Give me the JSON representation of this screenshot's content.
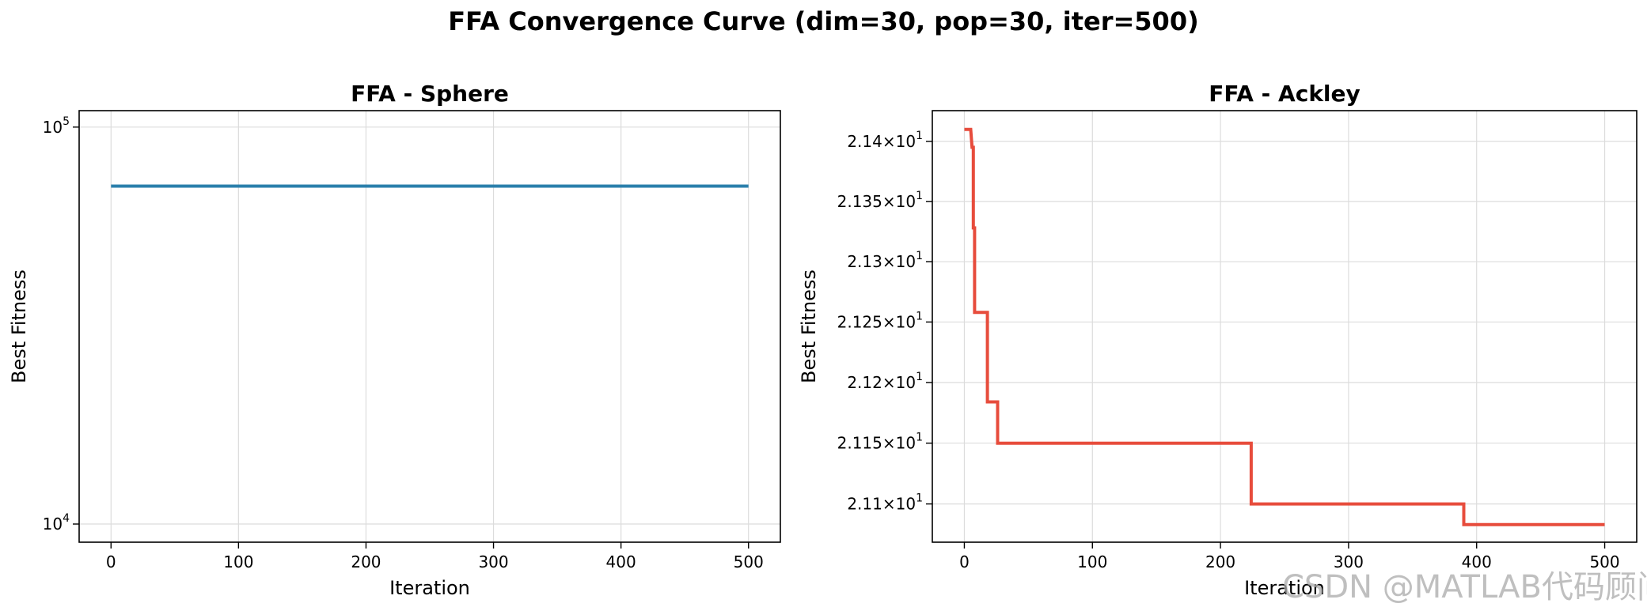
{
  "suptitle": "FFA Convergence Curve (dim=30, pop=30, iter=500)",
  "watermark": "CSDN @MATLAB代码顾问",
  "chart_data": [
    {
      "type": "line",
      "title": "FFA - Sphere",
      "xlabel": "Iteration",
      "ylabel": "Best Fitness",
      "yscale": "log",
      "xlim": [
        -25,
        525
      ],
      "ylim": [
        9000,
        110000
      ],
      "xticks": [
        0,
        100,
        200,
        300,
        400,
        500
      ],
      "yticks": [
        {
          "value": 10000,
          "base": "10",
          "exp": "4"
        },
        {
          "value": 100000,
          "base": "10",
          "exp": "5"
        }
      ],
      "grid": true,
      "color": "#2a7fab",
      "series": [
        {
          "x": [
            0,
            500
          ],
          "y": [
            71000,
            71000
          ]
        }
      ]
    },
    {
      "type": "line",
      "title": "FFA - Ackley",
      "xlabel": "Iteration",
      "ylabel": "Best Fitness",
      "yscale": "log",
      "xlim": [
        -25,
        525
      ],
      "ylim": [
        21.0686,
        21.4256
      ],
      "xticks": [
        0,
        100,
        200,
        300,
        400,
        500
      ],
      "yticks": [
        {
          "value": 21.1,
          "mant": "2.11",
          "base": "10",
          "exp": "1"
        },
        {
          "value": 21.15,
          "mant": "2.115",
          "base": "10",
          "exp": "1"
        },
        {
          "value": 21.2,
          "mant": "2.12",
          "base": "10",
          "exp": "1"
        },
        {
          "value": 21.25,
          "mant": "2.125",
          "base": "10",
          "exp": "1"
        },
        {
          "value": 21.3,
          "mant": "2.13",
          "base": "10",
          "exp": "1"
        },
        {
          "value": 21.35,
          "mant": "2.135",
          "base": "10",
          "exp": "1"
        },
        {
          "value": 21.4,
          "mant": "2.14",
          "base": "10",
          "exp": "1"
        }
      ],
      "grid": true,
      "color": "#e74c3c",
      "series": [
        {
          "x": [
            0,
            5,
            6,
            7,
            7,
            8,
            8,
            9,
            9,
            17,
            18,
            18,
            19,
            25,
            26,
            26,
            27,
            223,
            224,
            224,
            225,
            389,
            390,
            390,
            391,
            500
          ],
          "y": [
            21.41,
            21.41,
            21.395,
            21.395,
            21.328,
            21.328,
            21.258,
            21.258,
            21.258,
            21.258,
            21.258,
            21.184,
            21.184,
            21.184,
            21.184,
            21.15,
            21.15,
            21.15,
            21.15,
            21.1,
            21.1,
            21.1,
            21.1,
            21.083,
            21.083,
            21.083
          ]
        }
      ]
    }
  ]
}
